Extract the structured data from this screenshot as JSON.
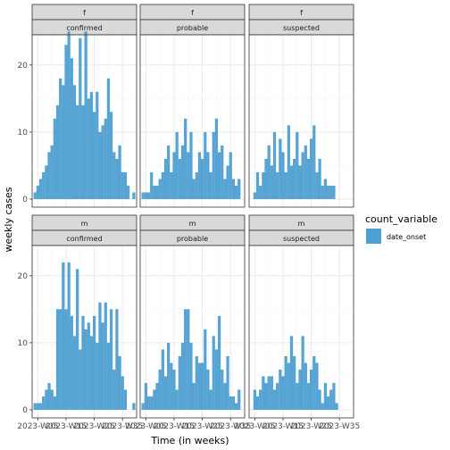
{
  "chart_data": {
    "type": "bar",
    "xlabel": "Time (in weeks)",
    "ylabel": "weekly cases",
    "ylim": [
      0,
      24
    ],
    "yticks": [
      0,
      10,
      20
    ],
    "xticks": [
      "2023-W05",
      "2023-W15",
      "2023-W25",
      "2023-W35"
    ],
    "grid": true,
    "legend": {
      "title": "count_variable",
      "entries": [
        {
          "label": "date_onset",
          "color": "#4e9fd2"
        }
      ],
      "position": "right"
    },
    "colors": {
      "bar": "#4e9fd2",
      "strip_bg": "#d9d9d9",
      "panel_border": "#333333",
      "grid": "#ebebeb"
    },
    "facets": [
      {
        "row": "f",
        "col": "confirmed",
        "x": [
          1,
          2,
          3,
          4,
          5,
          6,
          7,
          8,
          9,
          10,
          11,
          12,
          13,
          14,
          15,
          16,
          17,
          18,
          19,
          20,
          21,
          22,
          23,
          24,
          25,
          26,
          27,
          28,
          29,
          30,
          31,
          32,
          33,
          34,
          36
        ],
        "values": [
          1,
          2,
          3,
          4,
          5,
          7,
          8,
          12,
          14,
          18,
          17,
          23,
          25,
          21,
          17,
          14,
          24,
          14,
          25,
          15,
          16,
          13,
          16,
          10,
          11,
          12,
          18,
          13,
          7,
          6,
          8,
          4,
          4,
          2,
          1
        ]
      },
      {
        "row": "f",
        "col": "probable",
        "x": [
          1,
          2,
          3,
          4,
          5,
          6,
          7,
          8,
          9,
          10,
          11,
          12,
          13,
          14,
          15,
          16,
          17,
          18,
          19,
          20,
          21,
          22,
          23,
          24,
          25,
          26,
          27,
          28,
          29,
          30,
          31,
          32,
          33,
          34,
          35
        ],
        "values": [
          1,
          1,
          1,
          4,
          2,
          2,
          3,
          4,
          6,
          8,
          4,
          7,
          10,
          6,
          8,
          12,
          7,
          10,
          3,
          4,
          7,
          6,
          10,
          7,
          4,
          10,
          12,
          7,
          8,
          3,
          5,
          7,
          3,
          2,
          3
        ]
      },
      {
        "row": "f",
        "col": "suspected",
        "x": [
          2,
          3,
          4,
          5,
          6,
          7,
          8,
          9,
          10,
          11,
          12,
          13,
          14,
          15,
          16,
          17,
          18,
          19,
          20,
          21,
          22,
          23,
          24,
          25,
          26,
          27,
          28,
          29,
          30,
          31
        ],
        "values": [
          1,
          4,
          2,
          4,
          6,
          8,
          5,
          10,
          4,
          9,
          7,
          4,
          11,
          5,
          6,
          10,
          5,
          7,
          8,
          6,
          9,
          11,
          4,
          6,
          2,
          3,
          2,
          2,
          2,
          0
        ]
      },
      {
        "row": "m",
        "col": "confirmed",
        "x": [
          1,
          2,
          3,
          4,
          5,
          6,
          7,
          8,
          9,
          10,
          11,
          12,
          13,
          14,
          15,
          16,
          17,
          18,
          19,
          20,
          21,
          22,
          23,
          24,
          25,
          26,
          27,
          28,
          29,
          30,
          31,
          32,
          33,
          34,
          36
        ],
        "values": [
          1,
          1,
          1,
          2,
          3,
          4,
          3,
          2,
          15,
          15,
          22,
          15,
          22,
          14,
          11,
          21,
          9,
          14,
          12,
          13,
          11,
          14,
          10,
          16,
          13,
          16,
          10,
          15,
          6,
          15,
          8,
          5,
          3,
          0,
          1
        ]
      },
      {
        "row": "m",
        "col": "probable",
        "x": [
          1,
          2,
          3,
          4,
          5,
          6,
          7,
          8,
          9,
          10,
          11,
          12,
          13,
          14,
          15,
          16,
          17,
          18,
          19,
          20,
          21,
          22,
          23,
          24,
          25,
          26,
          27,
          28,
          29,
          30,
          31,
          32,
          33,
          34,
          35
        ],
        "values": [
          1,
          4,
          2,
          2,
          3,
          4,
          6,
          9,
          5,
          10,
          7,
          6,
          3,
          8,
          10,
          15,
          15,
          10,
          4,
          8,
          7,
          7,
          12,
          6,
          3,
          11,
          9,
          14,
          6,
          4,
          8,
          2,
          2,
          1,
          3
        ]
      },
      {
        "row": "m",
        "col": "suspected",
        "x": [
          2,
          3,
          4,
          5,
          6,
          7,
          8,
          9,
          10,
          11,
          12,
          13,
          14,
          15,
          16,
          17,
          18,
          19,
          20,
          21,
          22,
          23,
          24,
          25,
          26,
          27,
          28,
          29,
          30,
          31
        ],
        "values": [
          3,
          2,
          3,
          5,
          4,
          5,
          5,
          3,
          4,
          6,
          5,
          8,
          7,
          11,
          8,
          4,
          6,
          11,
          7,
          4,
          6,
          8,
          7,
          3,
          1,
          4,
          2,
          3,
          4,
          1
        ]
      }
    ]
  }
}
